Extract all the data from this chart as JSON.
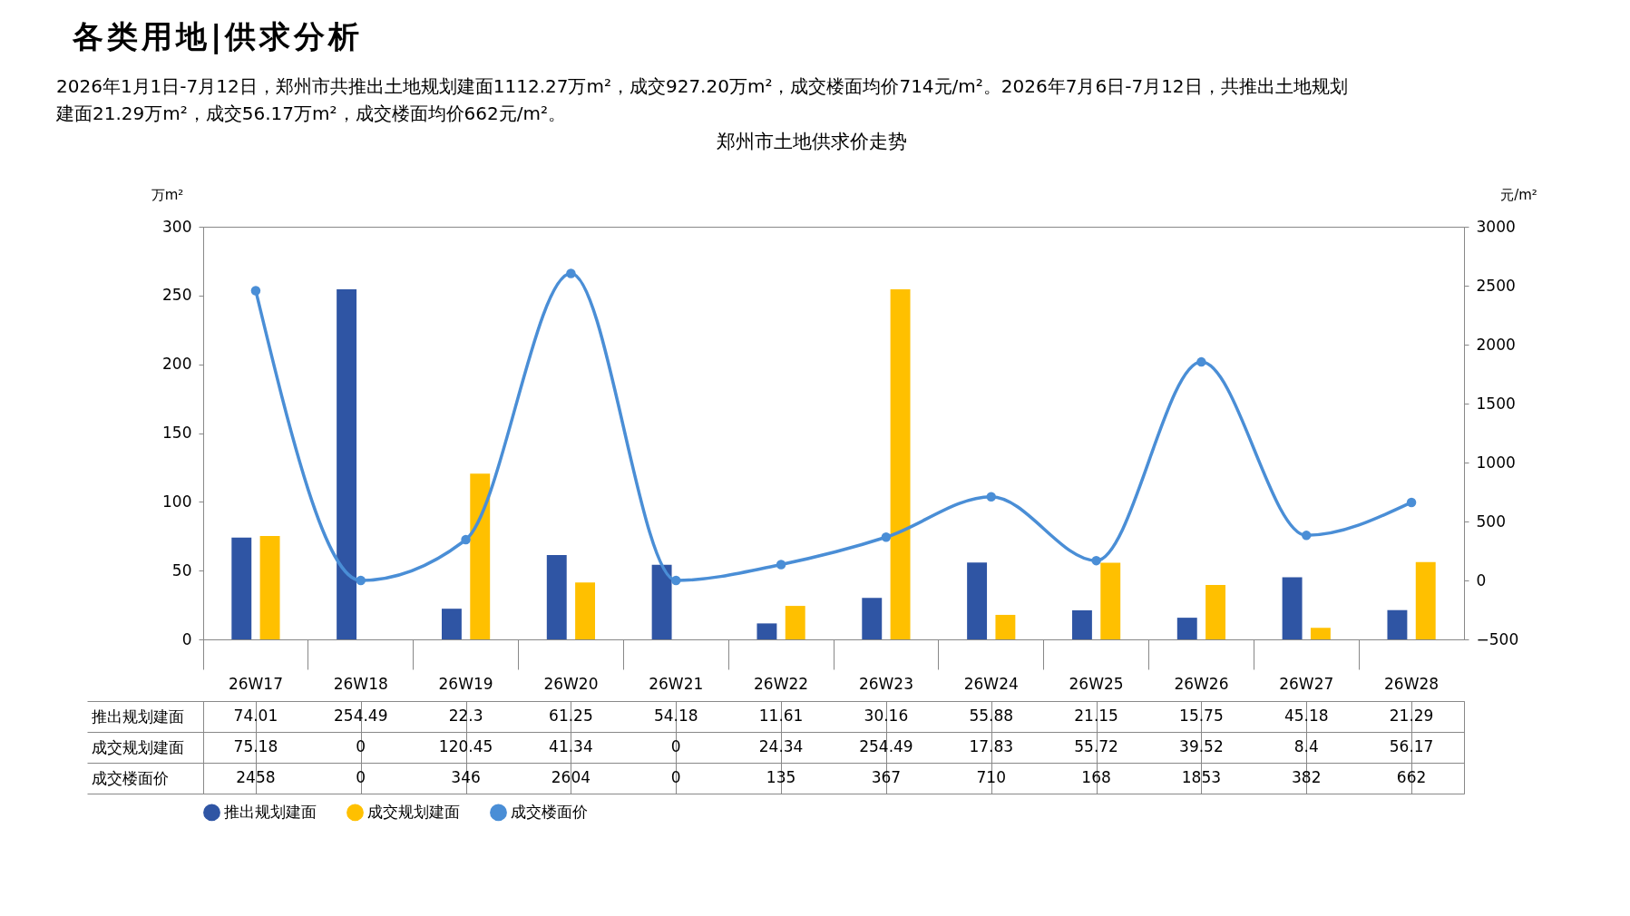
{
  "chart_data": {
    "type": "bar",
    "title": "郑州市土地供求价走势",
    "annotations": [
      "各类用地|供求分析",
      "2026年1月1日-7月12日，郑州市共推出土地规划建面1112.27万m²，成交927.20万m²，成交楼面均价714元/m²。2026年7月6日-7月12日，共推出土地规划建面21.29万m²，成交56.17万m²，成交楼面均价662元/m²。"
    ],
    "ylabel": "万m²",
    "y2label": "元/m²",
    "categories": [
      "26W17",
      "26W18",
      "26W19",
      "26W20",
      "26W21",
      "26W22",
      "26W23",
      "26W24",
      "26W25",
      "26W26",
      "26W27",
      "26W28"
    ],
    "series": [
      {
        "name": "推出规划建面",
        "color": "#2f55a4",
        "values": [
          74.01,
          254.49,
          22.3,
          61.25,
          54.18,
          11.61,
          30.16,
          55.88,
          21.15,
          15.75,
          45.18,
          21.29
        ]
      },
      {
        "name": "成交规划建面",
        "color": "#ffc000",
        "values": [
          75.18,
          0,
          120.45,
          41.34,
          0,
          24.34,
          254.49,
          17.83,
          55.72,
          39.52,
          8.4,
          56.17
        ]
      },
      {
        "name": "成交楼面价",
        "type": "line",
        "axis": "y2",
        "color": "#4a8ed6",
        "values": [
          2458,
          0,
          346,
          2604,
          0,
          135,
          367,
          710,
          168,
          1853,
          382,
          662
        ]
      }
    ],
    "ylim": [
      0,
      300
    ],
    "yticks": [
      0,
      50,
      100,
      150,
      200,
      250,
      300
    ],
    "y2lim": [
      -500,
      3000
    ],
    "y2ticks": [
      -500,
      0,
      500,
      1000,
      1500,
      2000,
      2500,
      3000
    ],
    "grid": false,
    "legend": "bottom",
    "marker": "circle",
    "line_style": "solid",
    "data_labels": true
  }
}
